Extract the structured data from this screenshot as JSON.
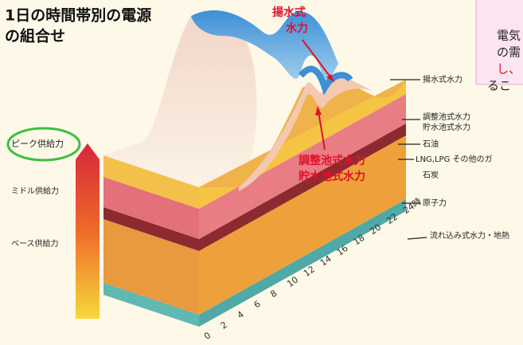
{
  "title": {
    "lines": [
      "1日の時間帯別の電源",
      "の組合せ"
    ]
  },
  "callouts": {
    "pumped": [
      "揚水式",
      "水力"
    ],
    "reservoir": [
      "調整池式水力",
      "貯水池式水力"
    ]
  },
  "supply_levels": [
    "ピーク供給力",
    "ミドル供給力",
    "ベース供給力"
  ],
  "layer_labels": [
    "揚水式水力",
    "調整池式水力",
    "貯水池式水力",
    "石油",
    "LNG,LPG その他のガ",
    "石炭",
    "原子力",
    "流れ込み式水力・地熱"
  ],
  "hours": [
    "0",
    "2",
    "4",
    "6",
    "8",
    "10",
    "12",
    "14",
    "16",
    "18",
    "20",
    "22",
    "24時"
  ],
  "note_lines": [
    "電気",
    "の需",
    "し、",
    "るこ"
  ]
}
